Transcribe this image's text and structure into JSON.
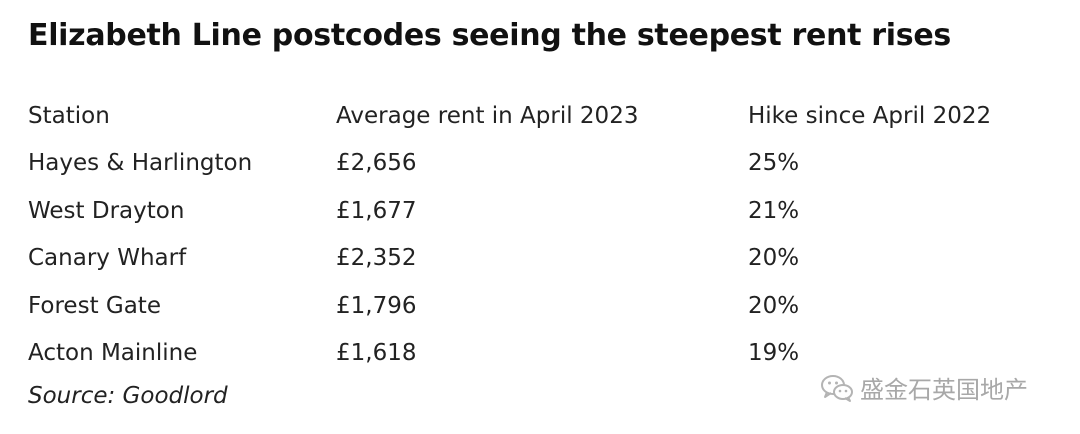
{
  "title": "Elizabeth Line postcodes seeing the steepest rent rises",
  "table": {
    "headers": [
      "Station",
      "Average rent in April 2023",
      "Hike since April 2022"
    ],
    "rows": [
      [
        "Hayes & Harlington",
        "£2,656",
        "25%"
      ],
      [
        "West Drayton",
        "£1,677",
        "21%"
      ],
      [
        "Canary Wharf",
        "£2,352",
        "20%"
      ],
      [
        "Forest Gate",
        "£1,796",
        "20%"
      ],
      [
        "Acton Mainline",
        "£1,618",
        "19%"
      ]
    ]
  },
  "source": "Source: Goodlord",
  "watermark": {
    "icon": "wechat-icon",
    "text": "盛金石英国地产"
  }
}
